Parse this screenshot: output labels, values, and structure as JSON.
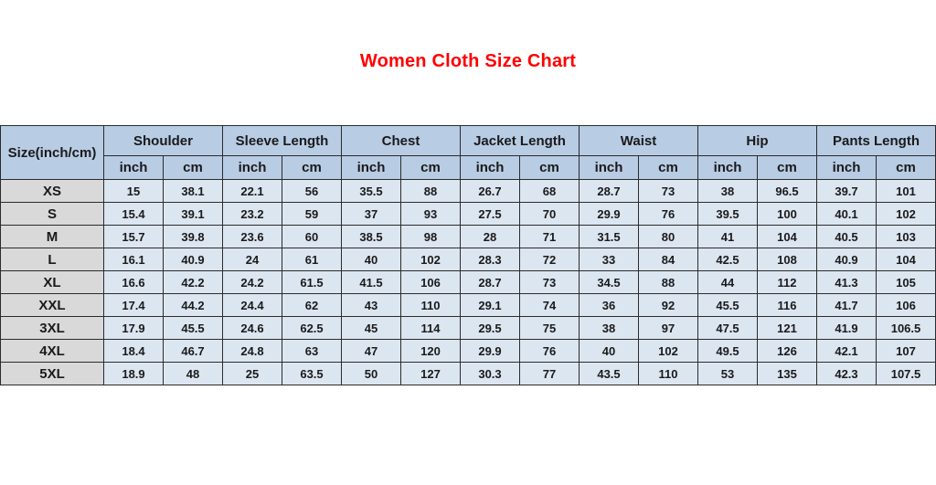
{
  "title": "Women Cloth Size Chart",
  "colors": {
    "title_text": "#ff0000",
    "header_bg": "#b8cce4",
    "size_column_bg": "#d9d9d9",
    "data_cell_bg": "#dce6f1",
    "border": "#2b2b2b"
  },
  "chart_data": {
    "type": "table",
    "title": "Women Cloth Size Chart",
    "corner_header": "Size(inch/cm)",
    "column_groups": [
      {
        "label": "Shoulder",
        "units": [
          "inch",
          "cm"
        ]
      },
      {
        "label": "Sleeve Length",
        "units": [
          "inch",
          "cm"
        ]
      },
      {
        "label": "Chest",
        "units": [
          "inch",
          "cm"
        ]
      },
      {
        "label": "Jacket Length",
        "units": [
          "inch",
          "cm"
        ]
      },
      {
        "label": "Waist",
        "units": [
          "inch",
          "cm"
        ]
      },
      {
        "label": "Hip",
        "units": [
          "inch",
          "cm"
        ]
      },
      {
        "label": "Pants Length",
        "units": [
          "inch",
          "cm"
        ]
      }
    ],
    "rows": [
      {
        "size": "XS",
        "values": [
          "15",
          "38.1",
          "22.1",
          "56",
          "35.5",
          "88",
          "26.7",
          "68",
          "28.7",
          "73",
          "38",
          "96.5",
          "39.7",
          "101"
        ]
      },
      {
        "size": "S",
        "values": [
          "15.4",
          "39.1",
          "23.2",
          "59",
          "37",
          "93",
          "27.5",
          "70",
          "29.9",
          "76",
          "39.5",
          "100",
          "40.1",
          "102"
        ]
      },
      {
        "size": "M",
        "values": [
          "15.7",
          "39.8",
          "23.6",
          "60",
          "38.5",
          "98",
          "28",
          "71",
          "31.5",
          "80",
          "41",
          "104",
          "40.5",
          "103"
        ]
      },
      {
        "size": "L",
        "values": [
          "16.1",
          "40.9",
          "24",
          "61",
          "40",
          "102",
          "28.3",
          "72",
          "33",
          "84",
          "42.5",
          "108",
          "40.9",
          "104"
        ]
      },
      {
        "size": "XL",
        "values": [
          "16.6",
          "42.2",
          "24.2",
          "61.5",
          "41.5",
          "106",
          "28.7",
          "73",
          "34.5",
          "88",
          "44",
          "112",
          "41.3",
          "105"
        ]
      },
      {
        "size": "XXL",
        "values": [
          "17.4",
          "44.2",
          "24.4",
          "62",
          "43",
          "110",
          "29.1",
          "74",
          "36",
          "92",
          "45.5",
          "116",
          "41.7",
          "106"
        ]
      },
      {
        "size": "3XL",
        "values": [
          "17.9",
          "45.5",
          "24.6",
          "62.5",
          "45",
          "114",
          "29.5",
          "75",
          "38",
          "97",
          "47.5",
          "121",
          "41.9",
          "106.5"
        ]
      },
      {
        "size": "4XL",
        "values": [
          "18.4",
          "46.7",
          "24.8",
          "63",
          "47",
          "120",
          "29.9",
          "76",
          "40",
          "102",
          "49.5",
          "126",
          "42.1",
          "107"
        ]
      },
      {
        "size": "5XL",
        "values": [
          "18.9",
          "48",
          "25",
          "63.5",
          "50",
          "127",
          "30.3",
          "77",
          "43.5",
          "110",
          "53",
          "135",
          "42.3",
          "107.5"
        ]
      }
    ]
  }
}
